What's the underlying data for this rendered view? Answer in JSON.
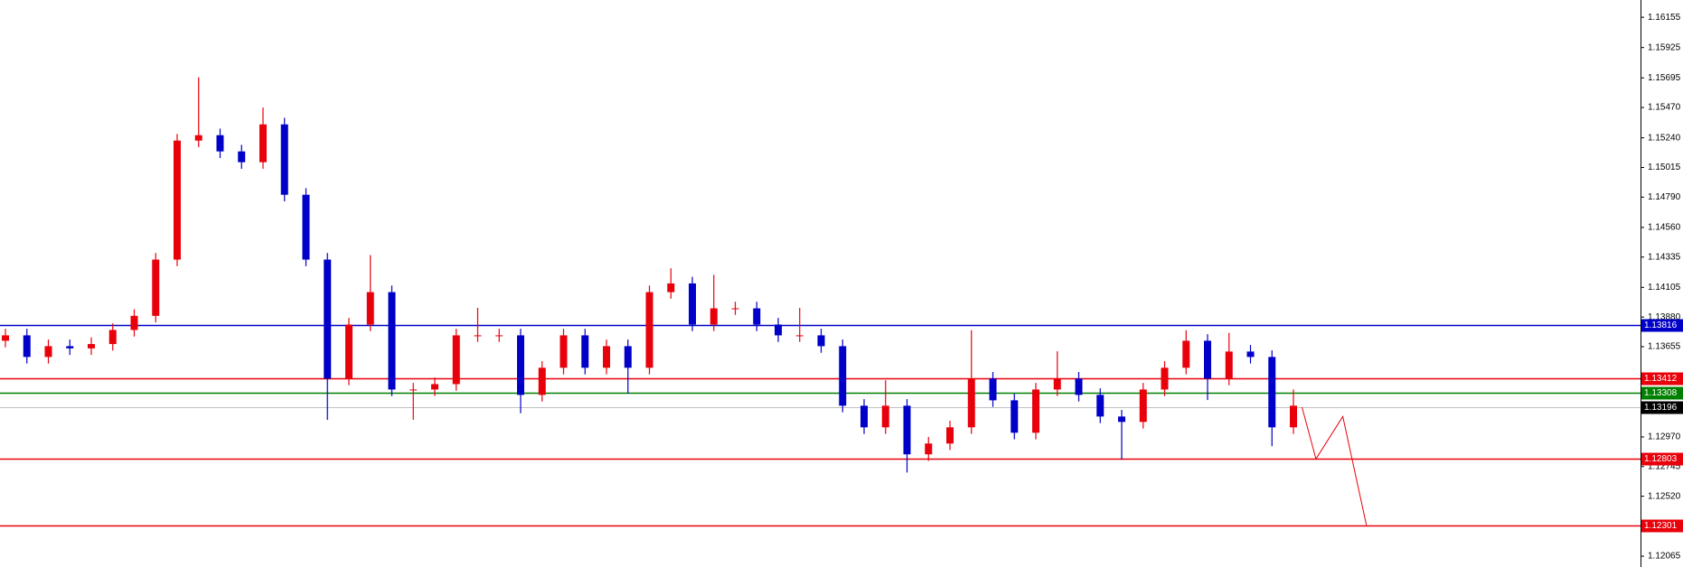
{
  "chart_data": {
    "type": "candlestick",
    "up_color": "#e8000b",
    "down_color": "#0000c8",
    "open": [
      1.137,
      1.13741,
      1.13577,
      1.13659,
      1.13642,
      1.13675,
      1.13782,
      1.13889,
      1.14316,
      1.15219,
      1.1526,
      1.15137,
      1.15055,
      1.15342,
      1.14808,
      1.14316,
      1.13413,
      1.13823,
      1.14069,
      1.1333,
      1.1333,
      1.13371,
      1.13741,
      1.13741,
      1.13741,
      1.13289,
      1.13495,
      1.13741,
      1.13495,
      1.13659,
      1.13495,
      1.14069,
      1.14135,
      1.13823,
      1.13946,
      1.13946,
      1.13823,
      1.13741,
      1.13741,
      1.13659,
      1.13207,
      1.13043,
      1.13207,
      1.12838,
      1.1292,
      1.13043,
      1.13413,
      1.13248,
      1.13002,
      1.1333,
      1.13413,
      1.13289,
      1.13125,
      1.13084,
      1.1333,
      1.13495,
      1.137,
      1.13413,
      1.13618,
      1.13577,
      1.13043
    ],
    "high": [
      1.13791,
      1.13791,
      1.13709,
      1.13709,
      1.13725,
      1.13832,
      1.13939,
      1.14366,
      1.15269,
      1.157,
      1.1531,
      1.15187,
      1.1547,
      1.15392,
      1.14858,
      1.14366,
      1.13873,
      1.1435,
      1.14119,
      1.1338,
      1.13421,
      1.13791,
      1.1395,
      1.13791,
      1.13791,
      1.13545,
      1.13791,
      1.13791,
      1.13709,
      1.13709,
      1.14119,
      1.1425,
      1.14185,
      1.142,
      1.13996,
      1.13996,
      1.13873,
      1.1395,
      1.13791,
      1.13709,
      1.13257,
      1.134,
      1.13257,
      1.1297,
      1.13093,
      1.1378,
      1.13463,
      1.13298,
      1.1338,
      1.1362,
      1.13463,
      1.13339,
      1.13175,
      1.1338,
      1.13545,
      1.1378,
      1.1375,
      1.1376,
      1.13668,
      1.13627,
      1.1333
    ],
    "low": [
      1.1365,
      1.13527,
      1.13527,
      1.13592,
      1.13592,
      1.13625,
      1.13732,
      1.13839,
      1.14266,
      1.15169,
      1.15087,
      1.15005,
      1.15005,
      1.14758,
      1.14266,
      1.131,
      1.13363,
      1.13773,
      1.1328,
      1.131,
      1.1328,
      1.13321,
      1.13691,
      1.13691,
      1.1315,
      1.13239,
      1.13445,
      1.13445,
      1.13445,
      1.133,
      1.13445,
      1.14019,
      1.13773,
      1.13773,
      1.13896,
      1.13773,
      1.13691,
      1.13691,
      1.13609,
      1.13157,
      1.12993,
      1.12993,
      1.127,
      1.12788,
      1.1287,
      1.12993,
      1.13198,
      1.12952,
      1.12952,
      1.1328,
      1.13239,
      1.13075,
      1.128,
      1.13034,
      1.1328,
      1.13445,
      1.1325,
      1.13363,
      1.13527,
      1.129,
      1.12993
    ],
    "close": [
      1.13741,
      1.13577,
      1.13659,
      1.13642,
      1.13675,
      1.13782,
      1.13889,
      1.14316,
      1.15219,
      1.1526,
      1.15137,
      1.15055,
      1.15342,
      1.14808,
      1.14316,
      1.13413,
      1.13823,
      1.14069,
      1.1333,
      1.1333,
      1.13371,
      1.13741,
      1.13741,
      1.13741,
      1.13289,
      1.13495,
      1.13741,
      1.13495,
      1.13659,
      1.13495,
      1.14069,
      1.14135,
      1.13823,
      1.13946,
      1.13946,
      1.13823,
      1.13741,
      1.13741,
      1.13659,
      1.13207,
      1.13043,
      1.13207,
      1.12838,
      1.1292,
      1.13043,
      1.13413,
      1.13248,
      1.13002,
      1.1333,
      1.13413,
      1.13289,
      1.13125,
      1.13084,
      1.1333,
      1.13495,
      1.137,
      1.13413,
      1.13618,
      1.13577,
      1.13043,
      1.13207
    ],
    "ylim": [
      1.11983,
      1.16286
    ],
    "yticks": [
      1.16155,
      1.15925,
      1.15695,
      {
        "value": 1.1547,
        "label": "1.15470"
      },
      {
        "value": 1.1524,
        "label": "1.15240"
      },
      1.15015,
      {
        "value": 1.1479,
        "label": "1.14790"
      },
      {
        "value": 1.1456,
        "label": "1.14560"
      },
      1.14335,
      1.14105,
      {
        "value": 1.1388,
        "label": "1.13880"
      },
      1.13655,
      {
        "value": 1.1297,
        "label": "1.12970"
      },
      1.12745,
      {
        "value": 1.1252,
        "label": "1.12520"
      },
      1.12065
    ],
    "levels": [
      {
        "value": 1.13816,
        "color": "#0000c8"
      },
      {
        "value": 1.13412,
        "color": "#e8000b"
      },
      {
        "value": 1.13308,
        "color": "#008000"
      },
      {
        "value": 1.13196,
        "color": "#000000"
      },
      {
        "value": 1.12803,
        "color": "#e8000b"
      },
      {
        "value": 1.12301,
        "color": "#e8000b"
      }
    ],
    "projection": {
      "color": "#e8000b",
      "values": [
        1.13196,
        1.12803,
        1.13125,
        1.12301
      ]
    }
  }
}
